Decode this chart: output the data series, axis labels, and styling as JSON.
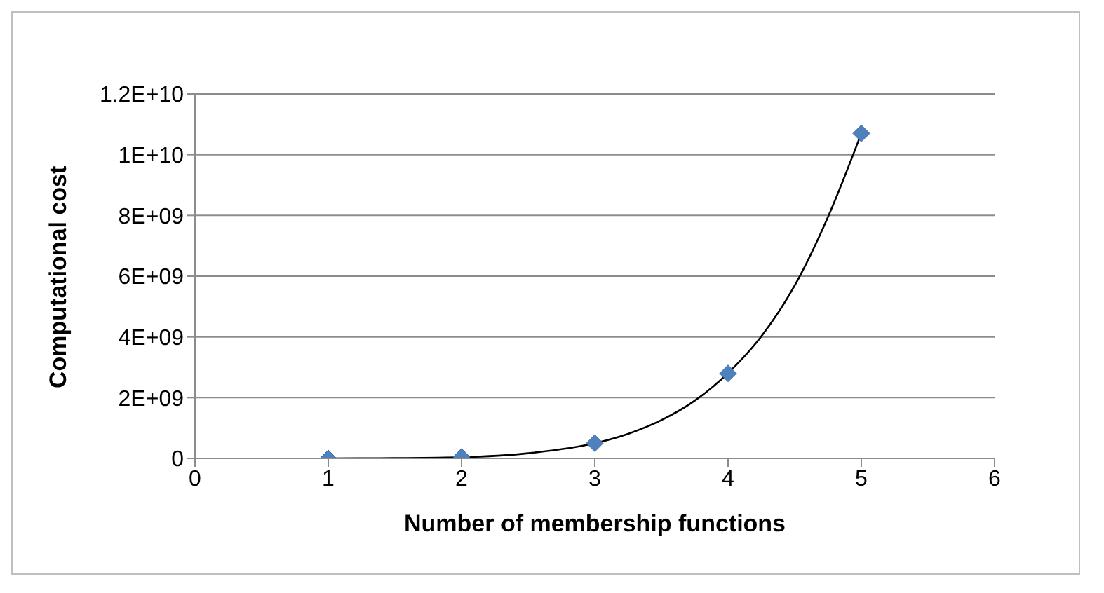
{
  "chart_data": {
    "type": "scatter",
    "xlabel": "Number of membership functions",
    "ylabel": "Computational cost",
    "xlim": [
      0,
      6
    ],
    "xticks": [
      0,
      1,
      2,
      3,
      4,
      5,
      6
    ],
    "ylim": [
      0,
      12000000000
    ],
    "yticks": [
      0,
      {
        "value": 2000000000,
        "label": "2E+09"
      },
      {
        "value": 4000000000,
        "label": "4E+09"
      },
      {
        "value": 6000000000,
        "label": "6E+09"
      },
      {
        "value": 8000000000,
        "label": "8E+09"
      },
      {
        "value": 10000000000,
        "label": "1E+10"
      },
      {
        "value": 12000000000,
        "label": "1.2E+10"
      }
    ],
    "grid": "y",
    "marker": "diamond",
    "legend": false,
    "series": [
      {
        "color": "#4f81bd",
        "x": [
          1,
          2,
          3,
          4,
          5
        ],
        "values": [
          0,
          50000000,
          500000000,
          2800000000,
          10700000000
        ]
      },
      {
        "type": "line",
        "color": "#000000",
        "marker": "none",
        "x": [
          1,
          1.5,
          2,
          2.5,
          3,
          3.25,
          3.5,
          3.75,
          4,
          4.25,
          4.5,
          4.75,
          5
        ],
        "values": [
          0,
          10000000,
          40000000,
          170000000,
          500000000,
          810000000,
          1260000000,
          1900000000,
          2810000000,
          4020000000,
          5690000000,
          7950000000,
          10700000000
        ]
      }
    ]
  }
}
